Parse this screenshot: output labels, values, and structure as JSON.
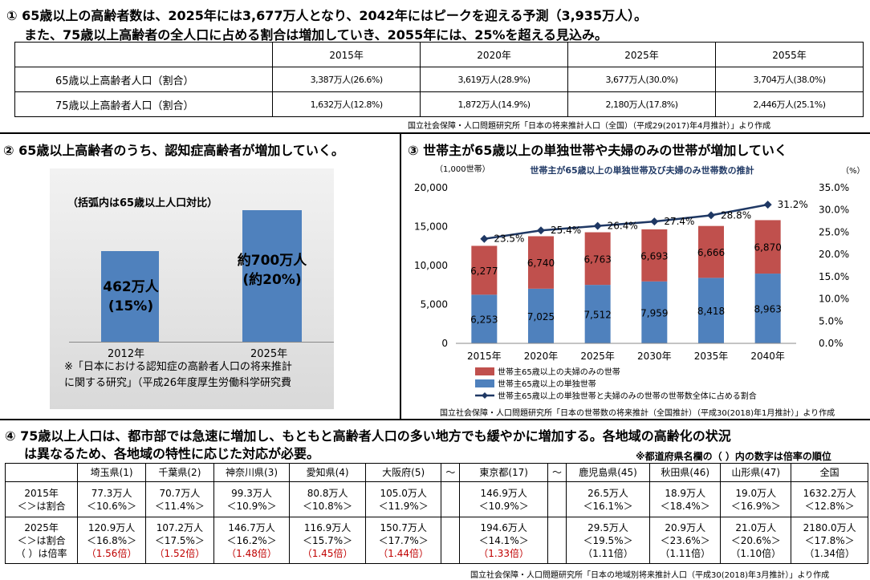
{
  "section1": {
    "title_line1": "① 65歳以上の高齢者数は、2025年には3,677万人となり、2042年にはピークを迎える予測（3,935万人）。",
    "title_line2": "また、75歳以上高齢者の全人口に占める割合は増加していき、2055年には、25%を超える見込み。",
    "table": {
      "headers": [
        "",
        "2015年",
        "2020年",
        "2025年",
        "2055年"
      ],
      "rows": [
        {
          "label": "65歳以上高齢者人口（割合）",
          "values": [
            "3,387万人(26.6%)",
            "3,619万人(28.9%)",
            "3,677万人(30.0%)",
            "3,704万人(38.0%)"
          ]
        },
        {
          "label": "75歳以上高齢者人口（割合）",
          "values": [
            "1,632万人(12.8%)",
            "1,872万人(14.9%)",
            "2,180万人(17.8%)",
            "2,446万人(25.1%)"
          ]
        }
      ]
    },
    "source": "国立社会保障・人口問題研究所「日本の将来推計人口（全国）（平成29(2017)年4月推計）」より作成"
  },
  "section2": {
    "title": "② 65歳以上高齢者のうち、認知症高齢者が増加していく。",
    "note": "（括弧内は65歳以上人口対比）",
    "bars": [
      {
        "year": "2012年",
        "value_label": "462万人",
        "pct_label": "(15%)",
        "value": 462
      },
      {
        "year": "2025年",
        "value_label": "約700万人",
        "pct_label": "(約20%)",
        "value": 700
      }
    ],
    "footnote_line1": "※「日本における認知症の高齢者人口の将来推計",
    "footnote_line2": "に関する研究」（平成26年度厚生労働科学研究費",
    "bar_color": "#4f81bd"
  },
  "section3": {
    "title": "③ 世帯主が65歳以上の単独世帯や夫婦のみの世帯が増加していく",
    "source": "国立社会保障・人口問題研究所「日本の世帯数の将来推計（全国推計）（平成30(2018)年1月推計）」より作成"
  },
  "chart_data": {
    "type": "bar",
    "stacked": true,
    "title": "世帯主が65歳以上の単独世帯及び夫婦のみ世帯数の推計",
    "ylabel_left": "（1,000世帯）",
    "ylabel_right": "（%）",
    "categories": [
      "2015年",
      "2020年",
      "2025年",
      "2030年",
      "2035年",
      "2040年"
    ],
    "series": [
      {
        "name": "世帯主65歳以上の単独世帯",
        "values": [
          6253,
          7025,
          7512,
          7959,
          8418,
          8963
        ],
        "color": "#4f81bd"
      },
      {
        "name": "世帯主65歳以上の夫婦のみの世帯",
        "values": [
          6277,
          6740,
          6763,
          6693,
          6666,
          6870
        ],
        "color": "#c0504d"
      }
    ],
    "line": {
      "name": "世帯主65歳以上の単独世帯と夫婦のみの世帯の世帯数全体に占める割合",
      "values": [
        23.5,
        25.4,
        26.4,
        27.4,
        28.8,
        31.2
      ],
      "labels": [
        "23.5%",
        "25.4%",
        "26.4%",
        "27.4%",
        "28.8%",
        "31.2%"
      ],
      "color": "#1f3864"
    },
    "ylim_left": [
      0,
      20000
    ],
    "ylim_right": [
      0,
      35
    ],
    "yticks_left": [
      "0",
      "5,000",
      "10,000",
      "15,000",
      "20,000"
    ],
    "yticks_right": [
      "0.0%",
      "5.0%",
      "10.0%",
      "15.0%",
      "20.0%",
      "25.0%",
      "30.0%",
      "35.0%"
    ],
    "legend_position": "bottom"
  },
  "section4": {
    "title_line1": "④ 75歳以上人口は、都市部では急速に増加し、もともと高齢者人口の多い地方でも緩やかに増加する。各地域の高齢化の状況",
    "title_line2": "は異なるため、各地域の特性に応じた対応が必要。",
    "note": "※都道府県名欄の（ ）内の数字は倍率の順位",
    "row1_label": [
      "2015年",
      "＜＞は割合"
    ],
    "row2_label": [
      "2025年",
      "＜＞は割合",
      "（ ）は倍率"
    ],
    "tilde": "～",
    "prefectures": [
      {
        "name": "埼玉県(1)",
        "v2015": "77.3万人",
        "p2015": "＜10.6%＞",
        "v2025": "120.9万人",
        "p2025": "＜16.8%＞",
        "ratio": "（1.56倍）",
        "red": true
      },
      {
        "name": "千葉県(2)",
        "v2015": "70.7万人",
        "p2015": "＜11.4%＞",
        "v2025": "107.2万人",
        "p2025": "＜17.5%＞",
        "ratio": "（1.52倍）",
        "red": true
      },
      {
        "name": "神奈川県(3)",
        "v2015": "99.3万人",
        "p2015": "＜10.9%＞",
        "v2025": "146.7万人",
        "p2025": "＜16.2%＞",
        "ratio": "（1.48倍）",
        "red": true
      },
      {
        "name": "愛知県(4)",
        "v2015": "80.8万人",
        "p2015": "＜10.8%＞",
        "v2025": "116.9万人",
        "p2025": "＜15.7%＞",
        "ratio": "（1.45倍）",
        "red": true
      },
      {
        "name": "大阪府(5)",
        "v2015": "105.0万人",
        "p2015": "＜11.9%＞",
        "v2025": "150.7万人",
        "p2025": "＜17.7%＞",
        "ratio": "（1.44倍）",
        "red": true
      },
      {
        "name": "東京都(17)",
        "v2015": "146.9万人",
        "p2015": "＜10.9%＞",
        "v2025": "194.6万人",
        "p2025": "＜14.1%＞",
        "ratio": "（1.33倍）",
        "red": true
      },
      {
        "name": "鹿児島県(45)",
        "v2015": "26.5万人",
        "p2015": "＜16.1%＞",
        "v2025": "29.5万人",
        "p2025": "＜19.5%＞",
        "ratio": "（1.11倍）",
        "red": false
      },
      {
        "name": "秋田県(46)",
        "v2015": "18.9万人",
        "p2015": "＜18.4%＞",
        "v2025": "20.9万人",
        "p2025": "＜23.6%＞",
        "ratio": "（1.11倍）",
        "red": false
      },
      {
        "name": "山形県(47)",
        "v2015": "19.0万人",
        "p2015": "＜16.9%＞",
        "v2025": "21.0万人",
        "p2025": "＜20.6%＞",
        "ratio": "（1.10倍）",
        "red": false
      },
      {
        "name": "全国",
        "v2015": "1632.2万人",
        "p2015": "＜12.8%＞",
        "v2025": "2180.0万人",
        "p2025": "＜17.8%＞",
        "ratio": "（1.34倍）",
        "red": false
      }
    ],
    "source": "国立社会保障・人口問題研究所「日本の地域別将来推計人口（平成30(2018)年3月推計）」より作成"
  }
}
